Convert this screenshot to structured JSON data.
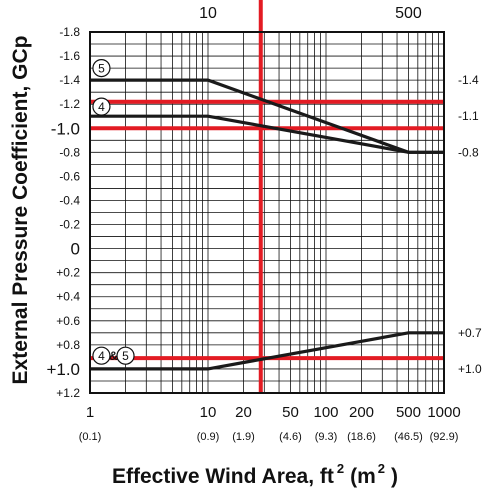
{
  "chart_data": {
    "type": "line",
    "title": "",
    "xlabel": "Effective Wind Area, ft",
    "xlabel_sup": "2",
    "xlabel_paren_open": "(m",
    "xlabel_paren_sup": "2",
    "xlabel_paren_close": ")",
    "ylabel": "External Pressure Coefficient, GCp",
    "x_scale": "log",
    "xlim": [
      1,
      1000
    ],
    "ylim": [
      -1.8,
      1.2
    ],
    "y_inverted": true,
    "x_ticks": [
      {
        "value": 1,
        "label": "1",
        "sub": "(0.1)"
      },
      {
        "value": 10,
        "label": "10",
        "sub": "(0.9)"
      },
      {
        "value": 20,
        "label": "20",
        "sub": "(1.9)"
      },
      {
        "value": 50,
        "label": "50",
        "sub": "(4.6)"
      },
      {
        "value": 100,
        "label": "100",
        "sub": "(9.3)"
      },
      {
        "value": 200,
        "label": "200",
        "sub": "(18.6)"
      },
      {
        "value": 500,
        "label": "500",
        "sub": "(46.5)"
      },
      {
        "value": 1000,
        "label": "1000",
        "sub": "(92.9)"
      }
    ],
    "top_ticks": [
      {
        "value": 10,
        "label": "10"
      },
      {
        "value": 500,
        "label": "500"
      }
    ],
    "y_ticks": [
      {
        "value": -1.8,
        "label": "-1.8"
      },
      {
        "value": -1.6,
        "label": "-1.6"
      },
      {
        "value": -1.4,
        "label": "-1.4"
      },
      {
        "value": -1.2,
        "label": "-1.2"
      },
      {
        "value": -1.0,
        "label": "-1.0"
      },
      {
        "value": -0.8,
        "label": "-0.8"
      },
      {
        "value": -0.6,
        "label": "-0.6"
      },
      {
        "value": -0.4,
        "label": "-0.4"
      },
      {
        "value": -0.2,
        "label": "-0.2"
      },
      {
        "value": 0,
        "label": "0"
      },
      {
        "value": 0.2,
        "label": "+0.2"
      },
      {
        "value": 0.4,
        "label": "+0.4"
      },
      {
        "value": 0.6,
        "label": "+0.6"
      },
      {
        "value": 0.8,
        "label": "+0.8"
      },
      {
        "value": 1.0,
        "label": "+1.0"
      },
      {
        "value": 1.2,
        "label": "+1.2"
      }
    ],
    "right_labels": [
      {
        "value": -1.4,
        "label": "-1.4"
      },
      {
        "value": -1.1,
        "label": "-1.1"
      },
      {
        "value": -0.8,
        "label": "-0.8"
      },
      {
        "value": 0.7,
        "label": "+0.7"
      },
      {
        "value": 1.0,
        "label": "+1.0"
      }
    ],
    "series": [
      {
        "name": "5",
        "x": [
          1,
          10,
          500,
          1000
        ],
        "y": [
          -1.4,
          -1.4,
          -0.8,
          -0.8
        ]
      },
      {
        "name": "4",
        "x": [
          1,
          10,
          500,
          1000
        ],
        "y": [
          -1.1,
          -1.1,
          -0.8,
          -0.8
        ]
      },
      {
        "name": "4 & 5",
        "x": [
          1,
          10,
          500,
          1000
        ],
        "y": [
          1.0,
          1.0,
          0.7,
          0.7
        ]
      }
    ],
    "series_labels": [
      {
        "text": "5",
        "x": 1.25,
        "y": -1.5
      },
      {
        "text": "4",
        "x": 1.25,
        "y": -1.18
      },
      {
        "text": "4",
        "x": 1.25,
        "y": 0.89
      },
      {
        "text": "&",
        "x": 1.58,
        "y": 0.89
      },
      {
        "text": "5",
        "x": 2.0,
        "y": 0.89
      }
    ],
    "reference_lines": {
      "vertical": [
        28
      ],
      "horizontal": [
        -1.22,
        -1.0,
        0.91
      ],
      "color": "#e31b23"
    },
    "line_color": "#1a1a1a",
    "grid": true
  }
}
